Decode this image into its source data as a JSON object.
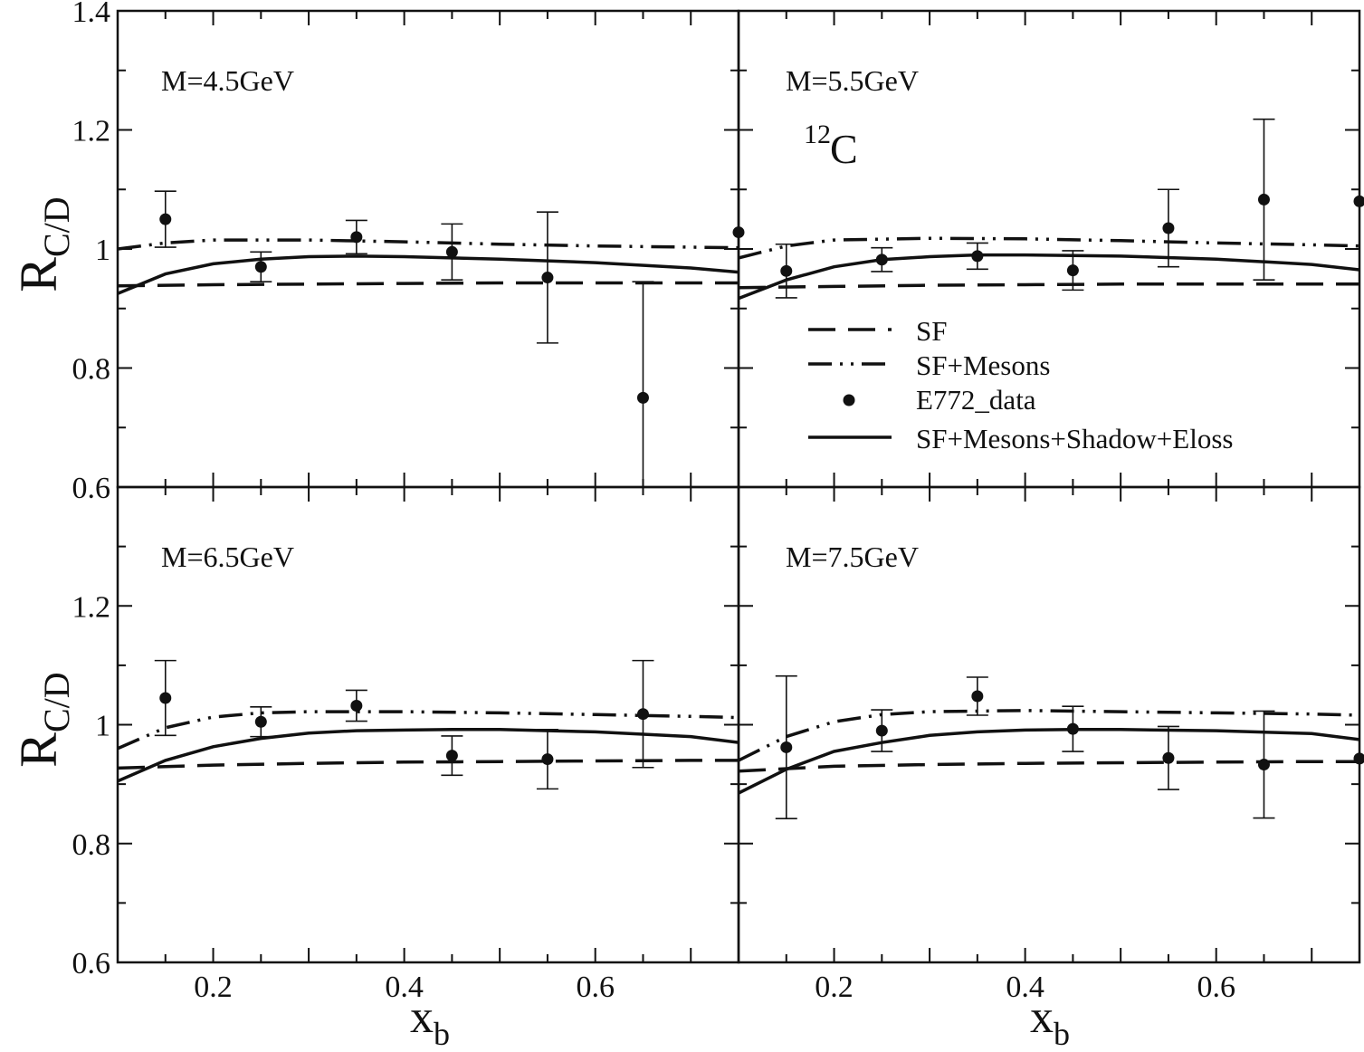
{
  "chart_data": {
    "type": "scatter",
    "nucleus": {
      "mass_number": "12",
      "symbol": "C"
    },
    "ylabel": {
      "main": "R",
      "sub": "C/D"
    },
    "xlabel": {
      "main": "x",
      "sub": "b"
    },
    "xlim": [
      0.1,
      0.75
    ],
    "ylim": [
      0.6,
      1.4
    ],
    "x_ticks": [
      0.2,
      0.4,
      0.6
    ],
    "x_tick_labels": [
      "0.2",
      "0.4",
      "0.6"
    ],
    "y_ticks_top": [
      0.6,
      0.8,
      1.0,
      1.2,
      1.4
    ],
    "y_tick_labels_top": [
      "0.6",
      "0.8",
      "1",
      "1.2",
      "1.4"
    ],
    "y_ticks_bottom": [
      0.6,
      0.8,
      1.0,
      1.2
    ],
    "y_tick_labels_bottom": [
      "0.6",
      "0.8",
      "1",
      "1.2"
    ],
    "legend": {
      "placement": "inside top-right panel, lower half",
      "entries": [
        {
          "key": "sf",
          "label": "SF",
          "style": "dashed"
        },
        {
          "key": "sfm",
          "label": "SF+Mesons",
          "style": "dash-dot-dot"
        },
        {
          "key": "data",
          "label": "E772_data",
          "style": "marker"
        },
        {
          "key": "full",
          "label": "SF+Mesons+Shadow+Eloss",
          "style": "solid"
        }
      ]
    },
    "panels": [
      {
        "id": "tl",
        "label": "M=4.5GeV",
        "data": {
          "x": [
            0.15,
            0.25,
            0.35,
            0.45,
            0.55,
            0.65
          ],
          "y": [
            1.05,
            0.97,
            1.02,
            0.995,
            0.952,
            0.75
          ],
          "yerr": [
            0.047,
            0.025,
            0.028,
            0.047,
            0.11,
            0.195
          ]
        },
        "curves": {
          "sf": {
            "x": [
              0.1,
              0.2,
              0.3,
              0.4,
              0.5,
              0.6,
              0.7,
              0.75
            ],
            "y": [
              0.938,
              0.94,
              0.941,
              0.942,
              0.943,
              0.943,
              0.943,
              0.943
            ]
          },
          "sfm": {
            "x": [
              0.1,
              0.15,
              0.2,
              0.3,
              0.4,
              0.5,
              0.6,
              0.7,
              0.75
            ],
            "y": [
              1.0,
              1.01,
              1.015,
              1.015,
              1.012,
              1.008,
              1.005,
              1.003,
              1.002
            ]
          },
          "full": {
            "x": [
              0.1,
              0.15,
              0.2,
              0.25,
              0.3,
              0.35,
              0.4,
              0.5,
              0.6,
              0.7,
              0.75
            ],
            "y": [
              0.925,
              0.958,
              0.975,
              0.983,
              0.987,
              0.988,
              0.987,
              0.983,
              0.977,
              0.968,
              0.961
            ]
          }
        }
      },
      {
        "id": "tr",
        "label": "M=5.5GeV",
        "data": {
          "x": [
            0.1,
            0.15,
            0.25,
            0.35,
            0.45,
            0.55,
            0.65,
            0.75
          ],
          "y": [
            1.028,
            0.963,
            0.982,
            0.988,
            0.964,
            1.035,
            1.083,
            1.08
          ],
          "yerr": [
            0.0,
            0.045,
            0.02,
            0.022,
            0.033,
            0.065,
            0.135,
            0.0
          ]
        },
        "curves": {
          "sf": {
            "x": [
              0.1,
              0.2,
              0.3,
              0.4,
              0.5,
              0.6,
              0.7,
              0.75
            ],
            "y": [
              0.935,
              0.937,
              0.939,
              0.94,
              0.941,
              0.941,
              0.941,
              0.941
            ]
          },
          "sfm": {
            "x": [
              0.1,
              0.15,
              0.2,
              0.3,
              0.4,
              0.5,
              0.6,
              0.7,
              0.75
            ],
            "y": [
              0.985,
              1.005,
              1.015,
              1.018,
              1.017,
              1.014,
              1.01,
              1.007,
              1.005
            ]
          },
          "full": {
            "x": [
              0.1,
              0.15,
              0.2,
              0.25,
              0.3,
              0.35,
              0.4,
              0.5,
              0.6,
              0.7,
              0.75
            ],
            "y": [
              0.917,
              0.948,
              0.97,
              0.982,
              0.987,
              0.99,
              0.99,
              0.988,
              0.983,
              0.974,
              0.965
            ]
          }
        }
      },
      {
        "id": "bl",
        "label": "M=6.5GeV",
        "data": {
          "x": [
            0.15,
            0.25,
            0.35,
            0.45,
            0.55,
            0.65
          ],
          "y": [
            1.045,
            1.005,
            1.032,
            0.948,
            0.942,
            1.018
          ],
          "yerr": [
            0.063,
            0.025,
            0.026,
            0.033,
            0.05,
            0.09
          ]
        },
        "curves": {
          "sf": {
            "x": [
              0.1,
              0.2,
              0.3,
              0.4,
              0.5,
              0.6,
              0.7,
              0.75
            ],
            "y": [
              0.927,
              0.932,
              0.935,
              0.937,
              0.938,
              0.939,
              0.94,
              0.94
            ]
          },
          "sfm": {
            "x": [
              0.1,
              0.15,
              0.2,
              0.25,
              0.3,
              0.4,
              0.5,
              0.6,
              0.7,
              0.75
            ],
            "y": [
              0.96,
              0.995,
              1.013,
              1.02,
              1.022,
              1.022,
              1.02,
              1.017,
              1.014,
              1.012
            ]
          },
          "full": {
            "x": [
              0.1,
              0.15,
              0.2,
              0.25,
              0.3,
              0.35,
              0.4,
              0.45,
              0.5,
              0.6,
              0.7,
              0.75
            ],
            "y": [
              0.905,
              0.94,
              0.963,
              0.977,
              0.986,
              0.99,
              0.991,
              0.992,
              0.992,
              0.988,
              0.98,
              0.97
            ]
          }
        }
      },
      {
        "id": "br",
        "label": "M=7.5GeV",
        "data": {
          "x": [
            0.15,
            0.25,
            0.35,
            0.45,
            0.55,
            0.65,
            0.75
          ],
          "y": [
            0.962,
            0.99,
            1.048,
            0.993,
            0.944,
            0.933,
            0.943
          ],
          "yerr": [
            0.12,
            0.035,
            0.032,
            0.038,
            0.053,
            0.09,
            0.0
          ]
        },
        "curves": {
          "sf": {
            "x": [
              0.1,
              0.2,
              0.3,
              0.4,
              0.5,
              0.6,
              0.7,
              0.75
            ],
            "y": [
              0.922,
              0.93,
              0.933,
              0.935,
              0.936,
              0.937,
              0.938,
              0.938
            ]
          },
          "sfm": {
            "x": [
              0.1,
              0.15,
              0.2,
              0.25,
              0.3,
              0.4,
              0.5,
              0.6,
              0.7,
              0.75
            ],
            "y": [
              0.94,
              0.98,
              1.005,
              1.017,
              1.022,
              1.024,
              1.022,
              1.02,
              1.018,
              1.016
            ]
          },
          "full": {
            "x": [
              0.1,
              0.15,
              0.2,
              0.25,
              0.3,
              0.35,
              0.4,
              0.45,
              0.5,
              0.6,
              0.7,
              0.75
            ],
            "y": [
              0.885,
              0.925,
              0.955,
              0.97,
              0.982,
              0.988,
              0.991,
              0.992,
              0.992,
              0.99,
              0.985,
              0.975
            ]
          }
        }
      }
    ]
  }
}
